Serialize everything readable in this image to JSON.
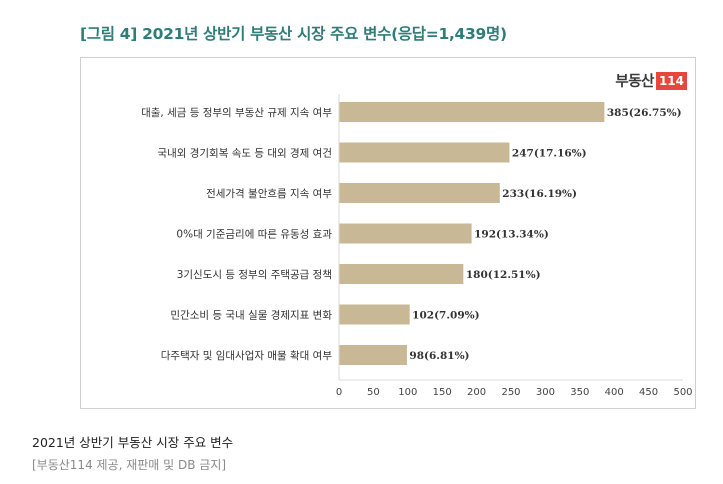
{
  "figure": {
    "title": "[그림 4] 2021년 상반기 부동산 시장 주요 변수(응답=1,439명)",
    "logo_text": "부동산",
    "logo_number": "114"
  },
  "caption": "2021년 상반기 부동산 시장 주요 변수",
  "credit": "[부동산114 제공, 재판매 및 DB 금지]",
  "colors": {
    "bar": "#c8b896",
    "title": "#2e7d78",
    "logo_accent": "#e8453c"
  },
  "chart_data": {
    "type": "bar",
    "orientation": "horizontal",
    "categories": [
      "대출, 세금 등 정부의 부동산 규제 지속 여부",
      "국내외 경기회복 속도 등 대외 경제 여건",
      "전세가격 불안흐름 지속 여부",
      "0%대 기준금리에 따른 유동성 효과",
      "3기신도시 등 정부의 주택공급 정책",
      "민간소비 등 국내 실물 경제지표 변화",
      "다주택자 및 임대사업자 매물 확대 여부"
    ],
    "values": [
      385,
      247,
      233,
      192,
      180,
      102,
      98
    ],
    "data_labels": [
      "385(26.75%)",
      "247(17.16%)",
      "233(16.19%)",
      "192(13.34%)",
      "180(12.51%)",
      "102(7.09%)",
      "98(6.81%)"
    ],
    "xlim": [
      0,
      500
    ],
    "xticks": [
      0,
      50,
      100,
      150,
      200,
      250,
      300,
      350,
      400,
      450,
      500
    ],
    "grid": false,
    "legend": "none"
  }
}
